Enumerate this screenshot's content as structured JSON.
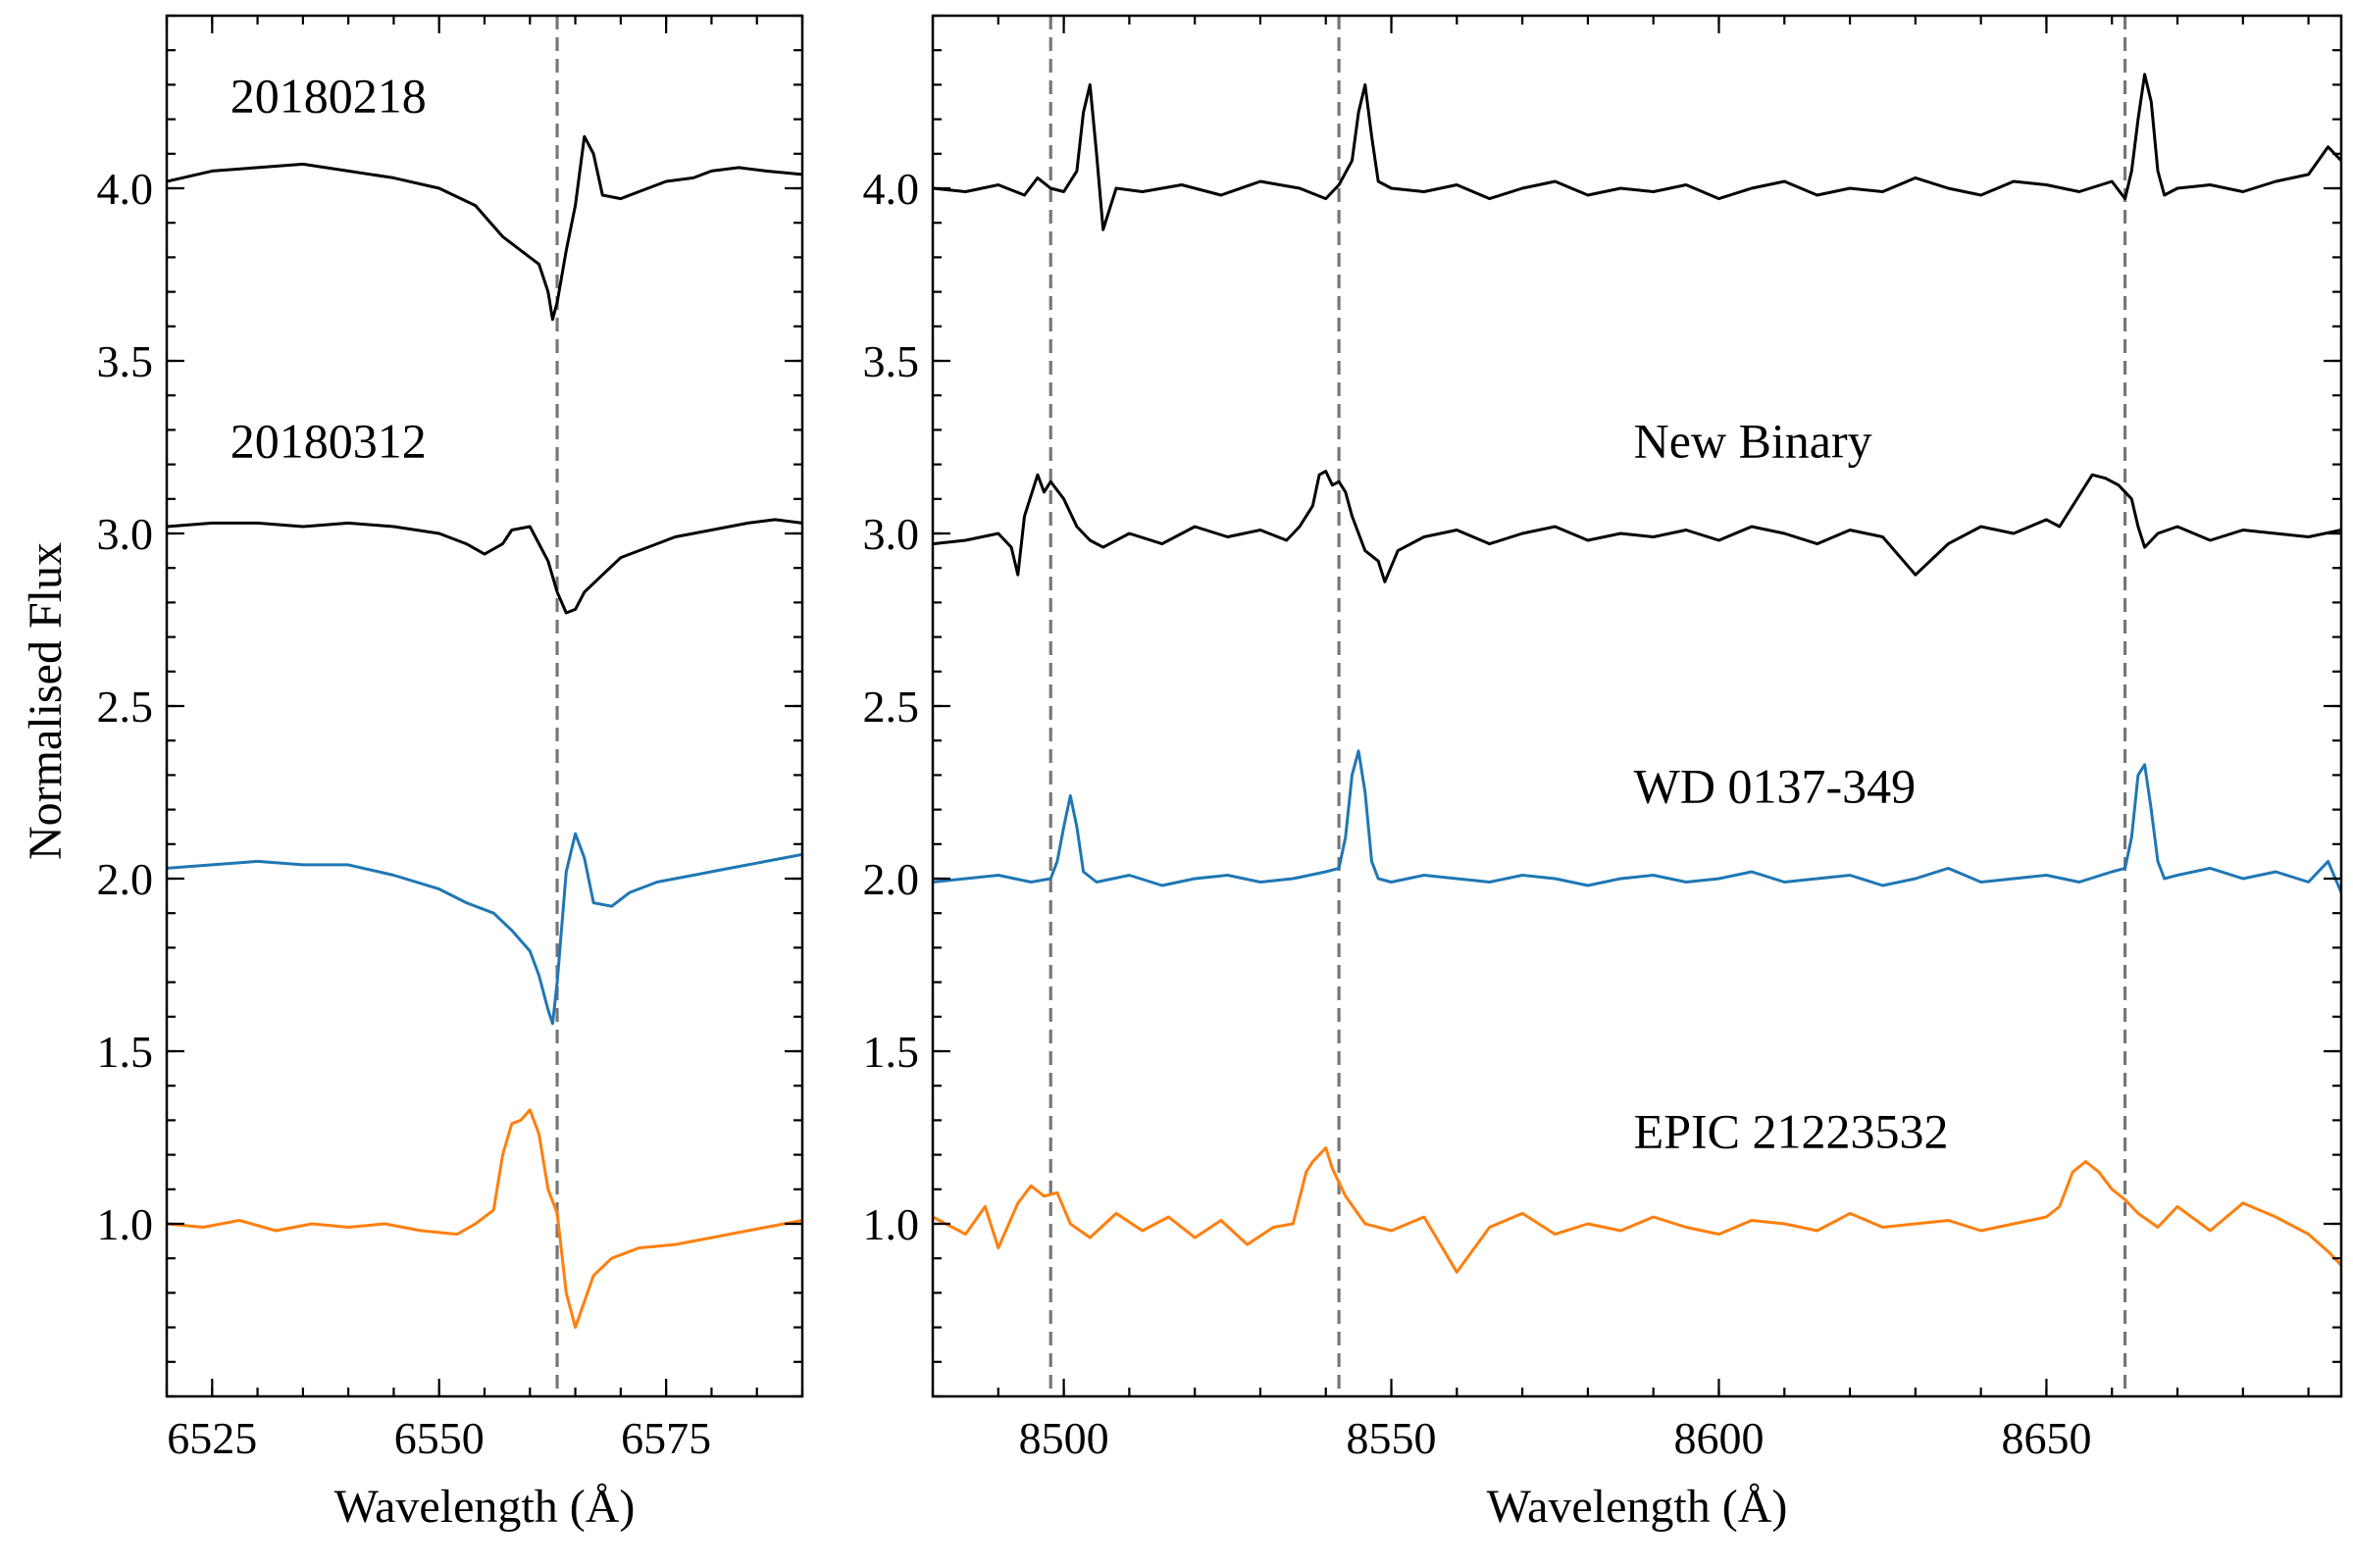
{
  "chart_data": [
    {
      "type": "line",
      "panel": "left",
      "xlabel": "Wavelength (Å)",
      "ylabel": "Normalised Flux",
      "xlim": [
        6520,
        6590
      ],
      "ylim": [
        0.5,
        4.5
      ],
      "xticks_major": [
        6525,
        6550,
        6575
      ],
      "yticks_major": [
        1.0,
        1.5,
        2.0,
        2.5,
        3.0,
        3.5,
        4.0
      ],
      "ytick_labels": [
        "1.0",
        "1.5",
        "2.0",
        "2.5",
        "3.0",
        "3.5",
        "4.0"
      ],
      "reference_lines_x": [
        6563
      ],
      "annotations": [
        {
          "text": "20180218",
          "x": 6527,
          "y": 4.22
        },
        {
          "text": "20180312",
          "x": 6527,
          "y": 3.22
        }
      ],
      "series": [
        {
          "color": "#000000",
          "x": [
            6520,
            6525,
            6530,
            6535,
            6540,
            6545,
            6550,
            6554,
            6557,
            6559,
            6561,
            6562,
            6562.5,
            6563,
            6564,
            6565,
            6566,
            6567,
            6568,
            6570,
            6572,
            6575,
            6578,
            6580,
            6583,
            6586,
            6590
          ],
          "y": [
            4.02,
            4.05,
            4.06,
            4.07,
            4.05,
            4.03,
            4.0,
            3.95,
            3.86,
            3.82,
            3.78,
            3.7,
            3.62,
            3.67,
            3.82,
            3.95,
            4.15,
            4.1,
            3.98,
            3.97,
            3.99,
            4.02,
            4.03,
            4.05,
            4.06,
            4.05,
            4.04
          ]
        },
        {
          "color": "#000000",
          "x": [
            6520,
            6525,
            6530,
            6535,
            6540,
            6545,
            6550,
            6553,
            6555,
            6557,
            6558,
            6560,
            6562,
            6563,
            6564,
            6565,
            6566,
            6568,
            6570,
            6573,
            6576,
            6580,
            6584,
            6587,
            6590
          ],
          "y": [
            3.02,
            3.03,
            3.03,
            3.02,
            3.03,
            3.02,
            3.0,
            2.97,
            2.94,
            2.97,
            3.01,
            3.02,
            2.92,
            2.83,
            2.77,
            2.78,
            2.83,
            2.88,
            2.93,
            2.96,
            2.99,
            3.01,
            3.03,
            3.04,
            3.03
          ]
        },
        {
          "color": "#1f77b4",
          "x": [
            6520,
            6525,
            6530,
            6535,
            6540,
            6545,
            6550,
            6553,
            6556,
            6558,
            6560,
            6561,
            6562,
            6562.5,
            6563,
            6564,
            6565,
            6566,
            6567,
            6569,
            6571,
            6574,
            6578,
            6582,
            6586,
            6590
          ],
          "y": [
            2.03,
            2.04,
            2.05,
            2.04,
            2.04,
            2.01,
            1.97,
            1.93,
            1.9,
            1.85,
            1.79,
            1.72,
            1.62,
            1.58,
            1.7,
            2.02,
            2.13,
            2.06,
            1.93,
            1.92,
            1.96,
            1.99,
            2.01,
            2.03,
            2.05,
            2.07
          ]
        },
        {
          "color": "#ff7f0e",
          "x": [
            6520,
            6524,
            6528,
            6532,
            6536,
            6540,
            6544,
            6548,
            6552,
            6554,
            6556,
            6557,
            6558,
            6559,
            6560,
            6561,
            6562,
            6563,
            6564,
            6565,
            6567,
            6569,
            6572,
            6576,
            6580,
            6584,
            6588,
            6590
          ],
          "y": [
            1.0,
            0.99,
            1.01,
            0.98,
            1.0,
            0.99,
            1.0,
            0.98,
            0.97,
            1.0,
            1.04,
            1.2,
            1.29,
            1.3,
            1.33,
            1.26,
            1.1,
            1.03,
            0.8,
            0.7,
            0.85,
            0.9,
            0.93,
            0.94,
            0.96,
            0.98,
            1.0,
            1.01
          ]
        }
      ]
    },
    {
      "type": "line",
      "panel": "right",
      "xlabel": "Wavelength (Å)",
      "xlim": [
        8480,
        8695
      ],
      "ylim": [
        0.5,
        4.5
      ],
      "xticks_major": [
        8500,
        8550,
        8600,
        8650
      ],
      "yticks_major": [
        1.0,
        1.5,
        2.0,
        2.5,
        3.0,
        3.5,
        4.0
      ],
      "ytick_labels": [
        "1.0",
        "1.5",
        "2.0",
        "2.5",
        "3.0",
        "3.5",
        "4.0"
      ],
      "reference_lines_x": [
        8498,
        8542,
        8662
      ],
      "annotations": [
        {
          "text": "New Binary",
          "x": 8587,
          "y": 3.22
        },
        {
          "text": "WD 0137-349",
          "x": 8587,
          "y": 2.22
        },
        {
          "text": "EPIC 21223532",
          "x": 8587,
          "y": 1.22
        }
      ],
      "series": [
        {
          "color": "#000000",
          "x": [
            8480,
            8485,
            8490,
            8494,
            8496,
            8498,
            8500,
            8502,
            8503,
            8504,
            8505,
            8506,
            8508,
            8512,
            8518,
            8524,
            8530,
            8536,
            8540,
            8542,
            8544,
            8545,
            8546,
            8547,
            8548,
            8550,
            8555,
            8560,
            8565,
            8570,
            8575,
            8580,
            8585,
            8590,
            8595,
            8600,
            8605,
            8610,
            8615,
            8620,
            8625,
            8630,
            8635,
            8640,
            8645,
            8650,
            8655,
            8660,
            8662,
            8663,
            8664,
            8665,
            8666,
            8667,
            8668,
            8670,
            8675,
            8680,
            8685,
            8690,
            8693,
            8695
          ],
          "y": [
            4.0,
            3.99,
            4.01,
            3.98,
            4.03,
            4.0,
            3.99,
            4.05,
            4.22,
            4.3,
            4.1,
            3.88,
            4.0,
            3.99,
            4.01,
            3.98,
            4.02,
            4.0,
            3.97,
            4.01,
            4.08,
            4.22,
            4.3,
            4.15,
            4.02,
            4.0,
            3.99,
            4.01,
            3.97,
            4.0,
            4.02,
            3.98,
            4.0,
            3.99,
            4.01,
            3.97,
            4.0,
            4.02,
            3.98,
            4.0,
            3.99,
            4.03,
            4.0,
            3.98,
            4.02,
            4.01,
            3.99,
            4.02,
            3.97,
            4.05,
            4.2,
            4.33,
            4.25,
            4.05,
            3.98,
            4.0,
            4.01,
            3.99,
            4.02,
            4.04,
            4.12,
            4.08
          ]
        },
        {
          "color": "#000000",
          "x": [
            8480,
            8485,
            8490,
            8492,
            8493,
            8494,
            8496,
            8497,
            8498,
            8500,
            8502,
            8504,
            8506,
            8510,
            8515,
            8520,
            8525,
            8530,
            8534,
            8536,
            8538,
            8539,
            8540,
            8541,
            8542,
            8543,
            8544,
            8546,
            8548,
            8549,
            8551,
            8555,
            8560,
            8565,
            8570,
            8575,
            8580,
            8585,
            8590,
            8595,
            8600,
            8605,
            8610,
            8615,
            8620,
            8625,
            8630,
            8635,
            8640,
            8645,
            8650,
            8652,
            8654,
            8656,
            8657,
            8659,
            8661,
            8663,
            8664,
            8665,
            8667,
            8670,
            8675,
            8680,
            8685,
            8690,
            8695
          ],
          "y": [
            2.97,
            2.98,
            3.0,
            2.96,
            2.88,
            3.05,
            3.17,
            3.12,
            3.15,
            3.1,
            3.02,
            2.98,
            2.96,
            3.0,
            2.97,
            3.02,
            2.99,
            3.01,
            2.98,
            3.02,
            3.08,
            3.17,
            3.18,
            3.14,
            3.15,
            3.12,
            3.05,
            2.95,
            2.92,
            2.86,
            2.95,
            2.99,
            3.01,
            2.97,
            3.0,
            3.02,
            2.98,
            3.0,
            2.99,
            3.01,
            2.98,
            3.02,
            3.0,
            2.97,
            3.01,
            2.99,
            2.88,
            2.97,
            3.02,
            3.0,
            3.04,
            3.02,
            3.08,
            3.14,
            3.17,
            3.16,
            3.14,
            3.1,
            3.02,
            2.96,
            3.0,
            3.02,
            2.98,
            3.01,
            3.0,
            2.99,
            3.01
          ]
        },
        {
          "color": "#1f77b4",
          "x": [
            8480,
            8485,
            8490,
            8495,
            8498,
            8499,
            8500,
            8501,
            8502,
            8503,
            8505,
            8510,
            8515,
            8520,
            8525,
            8530,
            8535,
            8540,
            8542,
            8543,
            8544,
            8545,
            8546,
            8547,
            8548,
            8550,
            8555,
            8560,
            8565,
            8570,
            8575,
            8580,
            8585,
            8590,
            8595,
            8600,
            8605,
            8610,
            8615,
            8620,
            8625,
            8630,
            8635,
            8640,
            8645,
            8650,
            8655,
            8660,
            8662,
            8663,
            8664,
            8665,
            8666,
            8667,
            8668,
            8670,
            8675,
            8680,
            8685,
            8690,
            8693,
            8695
          ],
          "y": [
            1.99,
            2.0,
            2.01,
            1.99,
            2.0,
            2.05,
            2.15,
            2.24,
            2.15,
            2.02,
            1.99,
            2.01,
            1.98,
            2.0,
            2.01,
            1.99,
            2.0,
            2.02,
            2.03,
            2.12,
            2.3,
            2.37,
            2.25,
            2.05,
            2.0,
            1.99,
            2.01,
            2.0,
            1.99,
            2.01,
            2.0,
            1.98,
            2.0,
            2.01,
            1.99,
            2.0,
            2.02,
            1.99,
            2.0,
            2.01,
            1.98,
            2.0,
            2.03,
            1.99,
            2.0,
            2.01,
            1.99,
            2.02,
            2.03,
            2.12,
            2.3,
            2.33,
            2.2,
            2.05,
            2.0,
            2.01,
            2.03,
            2.0,
            2.02,
            1.99,
            2.05,
            1.96
          ]
        },
        {
          "color": "#ff7f0e",
          "x": [
            8480,
            8485,
            8488,
            8490,
            8493,
            8495,
            8497,
            8499,
            8501,
            8504,
            8508,
            8512,
            8516,
            8520,
            8524,
            8528,
            8532,
            8535,
            8537,
            8538,
            8539,
            8540,
            8541,
            8543,
            8546,
            8550,
            8555,
            8560,
            8565,
            8570,
            8575,
            8580,
            8585,
            8590,
            8595,
            8600,
            8605,
            8610,
            8615,
            8620,
            8625,
            8630,
            8635,
            8640,
            8645,
            8650,
            8652,
            8654,
            8656,
            8658,
            8660,
            8662,
            8664,
            8667,
            8670,
            8675,
            8680,
            8685,
            8690,
            8693,
            8695
          ],
          "y": [
            1.02,
            0.97,
            1.05,
            0.93,
            1.06,
            1.11,
            1.08,
            1.09,
            1.0,
            0.96,
            1.03,
            0.98,
            1.02,
            0.96,
            1.01,
            0.94,
            0.99,
            1.0,
            1.15,
            1.18,
            1.2,
            1.22,
            1.16,
            1.08,
            1.0,
            0.98,
            1.02,
            0.86,
            0.99,
            1.03,
            0.97,
            1.0,
            0.98,
            1.02,
            0.99,
            0.97,
            1.01,
            1.0,
            0.98,
            1.03,
            0.99,
            1.0,
            1.01,
            0.98,
            1.0,
            1.02,
            1.05,
            1.15,
            1.18,
            1.15,
            1.1,
            1.07,
            1.03,
            0.99,
            1.05,
            0.98,
            1.06,
            1.02,
            0.97,
            0.92,
            0.88
          ]
        }
      ]
    }
  ]
}
